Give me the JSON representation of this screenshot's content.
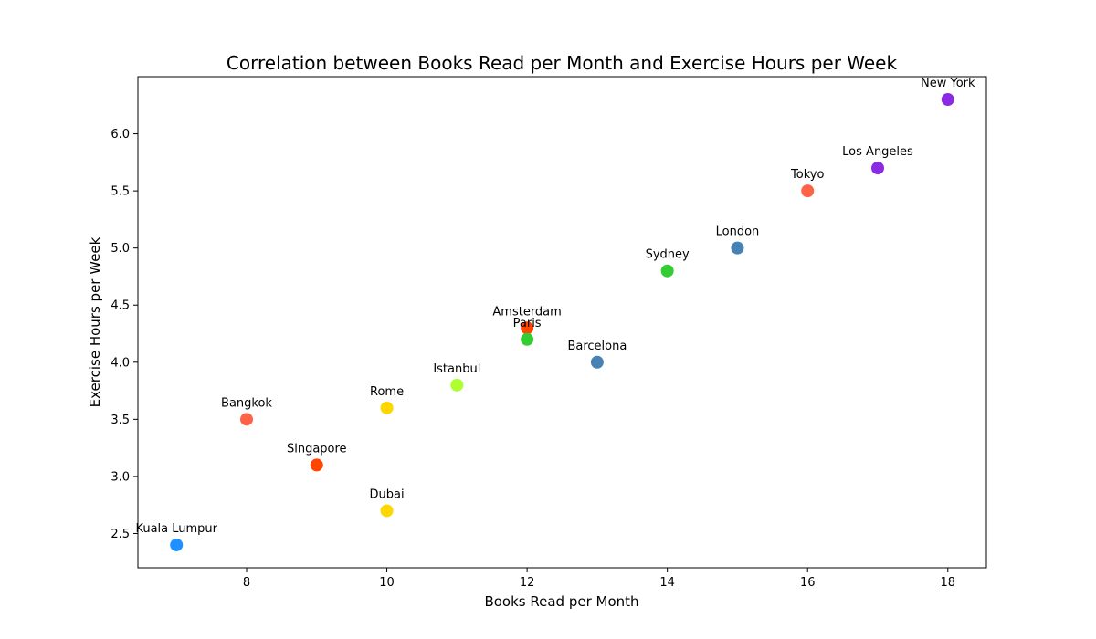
{
  "chart_data": {
    "type": "scatter",
    "title": "Correlation between Books Read per Month and Exercise Hours per Week",
    "xlabel": "Books Read per Month",
    "ylabel": "Exercise Hours per Week",
    "xlim": [
      6.45,
      18.55
    ],
    "ylim": [
      2.2,
      6.5
    ],
    "xticks": [
      8,
      10,
      12,
      14,
      16,
      18
    ],
    "yticks": [
      2.5,
      3.0,
      3.5,
      4.0,
      4.5,
      5.0,
      5.5,
      6.0
    ],
    "ytick_labels": [
      "2.5",
      "3.0",
      "3.5",
      "4.0",
      "4.5",
      "5.0",
      "5.5",
      "6.0"
    ],
    "grid": false,
    "points": [
      {
        "label": "New York",
        "x": 18,
        "y": 6.3,
        "color": "#8a2be2"
      },
      {
        "label": "Los Angeles",
        "x": 17,
        "y": 5.7,
        "color": "#8a2be2"
      },
      {
        "label": "Tokyo",
        "x": 16,
        "y": 5.5,
        "color": "#ff6347"
      },
      {
        "label": "London",
        "x": 15,
        "y": 5.0,
        "color": "#4682b4"
      },
      {
        "label": "Sydney",
        "x": 14,
        "y": 4.8,
        "color": "#32cd32"
      },
      {
        "label": "Barcelona",
        "x": 13,
        "y": 4.0,
        "color": "#4682b4"
      },
      {
        "label": "Amsterdam",
        "x": 12,
        "y": 4.3,
        "color": "#ff4500"
      },
      {
        "label": "Paris",
        "x": 12,
        "y": 4.2,
        "color": "#32cd32"
      },
      {
        "label": "Istanbul",
        "x": 11,
        "y": 3.8,
        "color": "#adff2f"
      },
      {
        "label": "Rome",
        "x": 10,
        "y": 3.6,
        "color": "#ffd700"
      },
      {
        "label": "Dubai",
        "x": 10,
        "y": 2.7,
        "color": "#ffd700"
      },
      {
        "label": "Singapore",
        "x": 9,
        "y": 3.1,
        "color": "#ff4500"
      },
      {
        "label": "Bangkok",
        "x": 8,
        "y": 3.5,
        "color": "#ff6347"
      },
      {
        "label": "Kuala Lumpur",
        "x": 7,
        "y": 2.4,
        "color": "#1e90ff"
      }
    ]
  }
}
